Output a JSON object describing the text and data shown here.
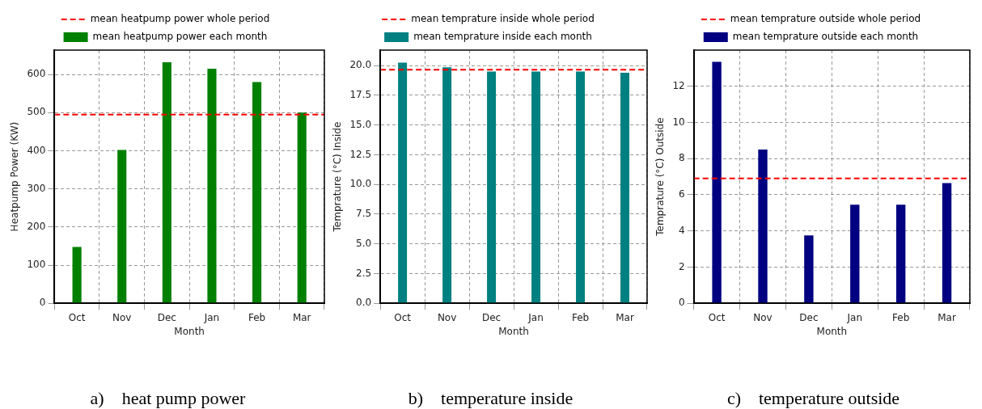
{
  "chart_data": [
    {
      "type": "bar",
      "categories": [
        "Oct",
        "Nov",
        "Dec",
        "Jan",
        "Feb",
        "Mar"
      ],
      "xlabel": "Month",
      "ylabel": "Heatpump Power (KW)",
      "series": [
        {
          "name": "mean heatpump power each month",
          "color": "#008000",
          "values": [
            148,
            402,
            632,
            615,
            580,
            500
          ]
        }
      ],
      "ylim": [
        0,
        664
      ],
      "yticks": [
        0,
        100,
        200,
        300,
        400,
        500,
        600
      ],
      "grid": true,
      "legend": "top",
      "ref_lines": [
        {
          "axis": "y",
          "value": 495,
          "label": "mean heatpump power whole period",
          "color": "#ff0000",
          "line_style": "dashed"
        }
      ],
      "annotations": [
        "a)    heat pump power"
      ]
    },
    {
      "type": "bar",
      "categories": [
        "Oct",
        "Nov",
        "Dec",
        "Jan",
        "Feb",
        "Mar"
      ],
      "xlabel": "Month",
      "ylabel": "Temprature (°C) Inside",
      "series": [
        {
          "name": "mean temprature inside each month",
          "color": "#008080",
          "values": [
            20.25,
            19.85,
            19.5,
            19.5,
            19.5,
            19.4
          ]
        }
      ],
      "ylim": [
        0,
        21.3
      ],
      "yticks": [
        {
          "value": 0,
          "label": "0.0"
        },
        {
          "value": 2.5,
          "label": "2.5"
        },
        {
          "value": 5,
          "label": "5.0"
        },
        {
          "value": 7.5,
          "label": "7.5"
        },
        {
          "value": 10,
          "label": "10.0"
        },
        {
          "value": 12.5,
          "label": "12.5"
        },
        {
          "value": 15,
          "label": "15.0"
        },
        {
          "value": 17.5,
          "label": "17.5"
        },
        {
          "value": 20,
          "label": "20.0"
        }
      ],
      "grid": true,
      "legend": "top",
      "ref_lines": [
        {
          "axis": "y",
          "value": 19.65,
          "label": "mean temprature inside whole period",
          "color": "#ff0000",
          "line_style": "dashed"
        }
      ],
      "annotations": [
        "b)    temperature inside"
      ]
    },
    {
      "type": "bar",
      "categories": [
        "Oct",
        "Nov",
        "Dec",
        "Jan",
        "Feb",
        "Mar"
      ],
      "xlabel": "Month",
      "ylabel": "Temprature (°C) Outside",
      "series": [
        {
          "name": "mean temprature outside each month",
          "color": "#000080",
          "values": [
            13.35,
            8.5,
            3.75,
            5.45,
            5.45,
            6.65
          ]
        }
      ],
      "ylim": [
        0,
        14
      ],
      "yticks": [
        0,
        2,
        4,
        6,
        8,
        10,
        12
      ],
      "grid": true,
      "legend": "top",
      "ref_lines": [
        {
          "axis": "y",
          "value": 6.9,
          "label": "mean temprature outside whole period",
          "color": "#ff0000",
          "line_style": "dashed"
        }
      ],
      "annotations": [
        "c)    temperature outside"
      ]
    }
  ]
}
